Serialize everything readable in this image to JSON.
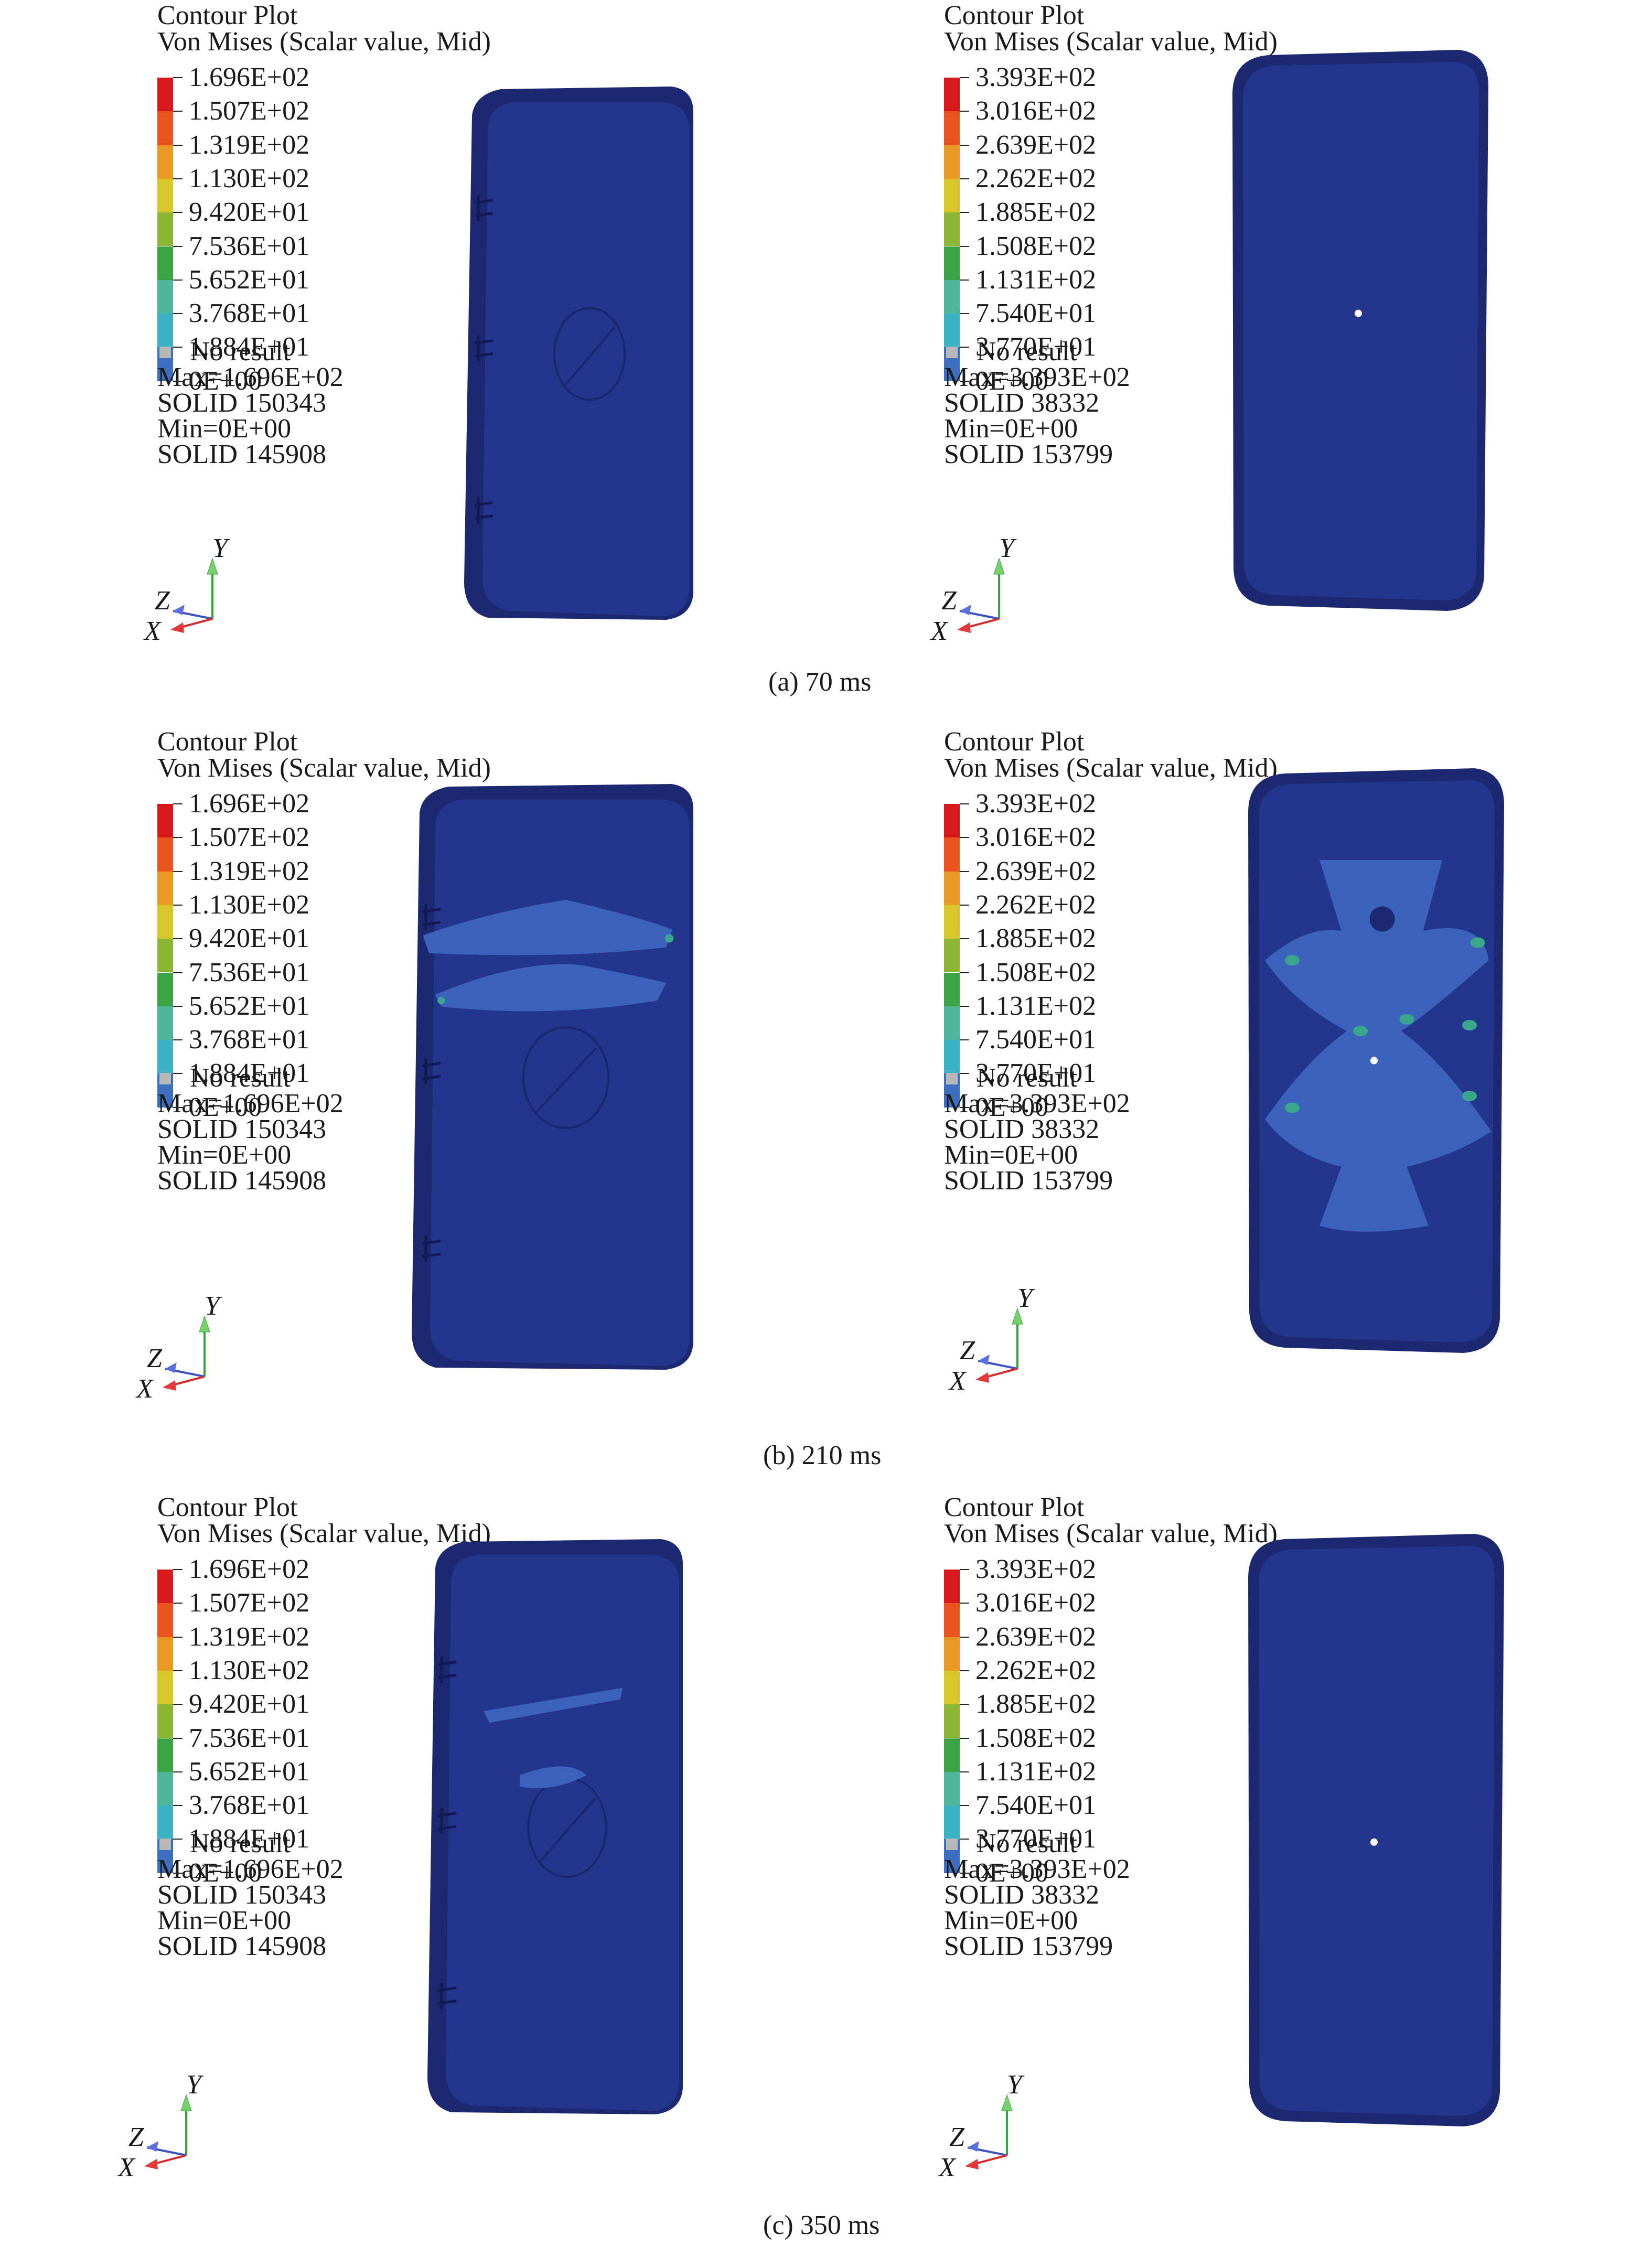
{
  "plot_header": {
    "title": "Contour Plot",
    "subtitle": "Von Mises (Scalar value, Mid)"
  },
  "legend_colors": [
    "#d7191c",
    "#e9541f",
    "#e99a26",
    "#d8c72b",
    "#8ab634",
    "#3aa444",
    "#4fb59b",
    "#3bb3c4",
    "#3d6fc0",
    "#27358f"
  ],
  "no_result_label": "No result",
  "scale_left": {
    "labels": [
      "1.696E+02",
      "1.507E+02",
      "1.319E+02",
      "1.130E+02",
      "9.420E+01",
      "7.536E+01",
      "5.652E+01",
      "3.768E+01",
      "1.884E+01",
      "0E+00"
    ],
    "max": "Max=1.696E+02",
    "max_elem": "SOLID 150343",
    "min": "Min=0E+00",
    "min_elem": "SOLID 145908"
  },
  "scale_right": {
    "labels": [
      "3.393E+02",
      "3.016E+02",
      "2.639E+02",
      "2.262E+02",
      "1.885E+02",
      "1.508E+02",
      "1.131E+02",
      "7.540E+01",
      "3.770E+01",
      "0E+00"
    ],
    "max": "Max=3.393E+02",
    "max_elem": "SOLID 38332",
    "min": "Min=0E+00",
    "min_elem": "SOLID 153799"
  },
  "axes": {
    "x": "X",
    "y": "Y",
    "z": "Z"
  },
  "captions": {
    "a": "(a) 70 ms",
    "b": "(b) 210 ms",
    "c": "(c) 350 ms"
  },
  "colors": {
    "model_base": "#24358e",
    "model_edge": "#1c2870",
    "stress_low": "#3c63bb",
    "stress_mid": "#3aa68c",
    "no_result": "#b8b8b8"
  }
}
